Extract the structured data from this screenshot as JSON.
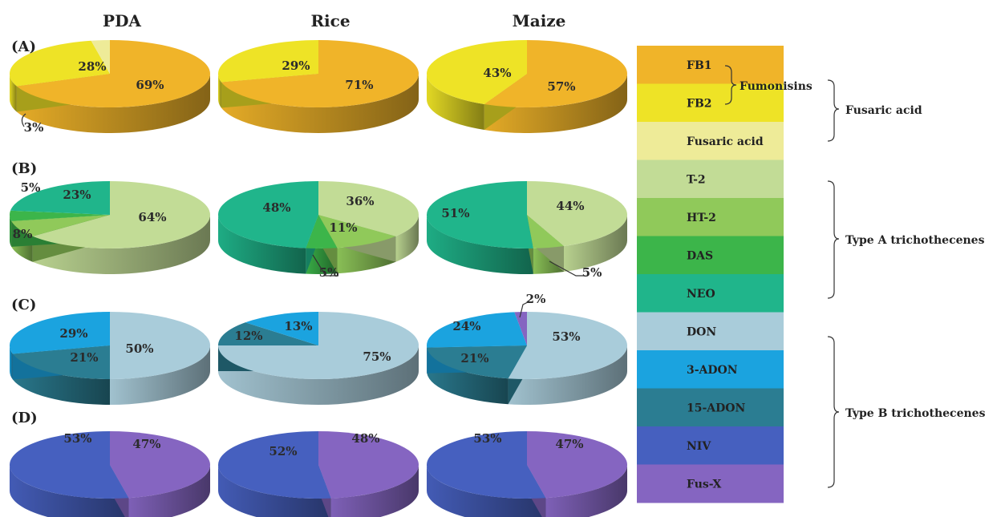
{
  "chart_data": {
    "type": "pie",
    "columns": [
      "PDA",
      "Rice",
      "Maize"
    ],
    "rows": [
      {
        "label": "(A)",
        "pies": [
          {
            "slices": [
              {
                "legend": "FB1",
                "value": 69,
                "label": "69%"
              },
              {
                "legend": "FB2",
                "value": 28,
                "label": "28%"
              },
              {
                "legend": "Fusaric acid",
                "value": 3,
                "label": "3%"
              }
            ]
          },
          {
            "slices": [
              {
                "legend": "FB1",
                "value": 71,
                "label": "71%"
              },
              {
                "legend": "FB2",
                "value": 29,
                "label": "29%"
              }
            ]
          },
          {
            "slices": [
              {
                "legend": "FB1",
                "value": 57,
                "label": "57%"
              },
              {
                "legend": "FB2",
                "value": 43,
                "label": "43%"
              }
            ]
          }
        ]
      },
      {
        "label": "(B)",
        "pies": [
          {
            "slices": [
              {
                "legend": "T-2",
                "value": 64,
                "label": "64%"
              },
              {
                "legend": "HT-2",
                "value": 8,
                "label": "8%"
              },
              {
                "legend": "DAS",
                "value": 5,
                "label": "5%"
              },
              {
                "legend": "NEO",
                "value": 23,
                "label": "23%"
              }
            ]
          },
          {
            "slices": [
              {
                "legend": "T-2",
                "value": 36,
                "label": "36%"
              },
              {
                "legend": "HT-2",
                "value": 11,
                "label": "11%"
              },
              {
                "legend": "DAS",
                "value": 5,
                "label": "5%"
              },
              {
                "legend": "NEO",
                "value": 48,
                "label": "48%"
              }
            ]
          },
          {
            "slices": [
              {
                "legend": "T-2",
                "value": 44,
                "label": "44%"
              },
              {
                "legend": "HT-2",
                "value": 5,
                "label": "5%"
              },
              {
                "legend": "NEO",
                "value": 51,
                "label": "51%"
              }
            ]
          }
        ]
      },
      {
        "label": "(C)",
        "pies": [
          {
            "slices": [
              {
                "legend": "DON",
                "value": 50,
                "label": "50%"
              },
              {
                "legend": "15-ADON",
                "value": 21,
                "label": "21%"
              },
              {
                "legend": "3-ADON",
                "value": 29,
                "label": "29%"
              }
            ]
          },
          {
            "slices": [
              {
                "legend": "DON",
                "value": 75,
                "label": "75%"
              },
              {
                "legend": "15-ADON",
                "value": 12,
                "label": "12%"
              },
              {
                "legend": "3-ADON",
                "value": 13,
                "label": "13%"
              }
            ]
          },
          {
            "slices": [
              {
                "legend": "DON",
                "value": 53,
                "label": "53%"
              },
              {
                "legend": "15-ADON",
                "value": 21,
                "label": "21%"
              },
              {
                "legend": "3-ADON",
                "value": 24,
                "label": "24%"
              },
              {
                "legend": "Fus-X",
                "value": 2,
                "label": "2%"
              }
            ]
          }
        ]
      },
      {
        "label": "(D)",
        "pies": [
          {
            "slices": [
              {
                "legend": "Fus-X",
                "value": 47,
                "label": "47%"
              },
              {
                "legend": "NIV",
                "value": 53,
                "label": "53%"
              }
            ]
          },
          {
            "slices": [
              {
                "legend": "Fus-X",
                "value": 48,
                "label": "48%"
              },
              {
                "legend": "NIV",
                "value": 52,
                "label": "52%"
              }
            ]
          },
          {
            "slices": [
              {
                "legend": "Fus-X",
                "value": 47,
                "label": "47%"
              },
              {
                "legend": "NIV",
                "value": 53,
                "label": "53%"
              }
            ]
          }
        ]
      }
    ],
    "legend": [
      {
        "name": "FB1",
        "color": "#f0b429"
      },
      {
        "name": "FB2",
        "color": "#eee326"
      },
      {
        "name": "Fusaric acid",
        "color": "#eeeb98"
      },
      {
        "name": "T-2",
        "color": "#c2dc96"
      },
      {
        "name": "HT-2",
        "color": "#90c95a"
      },
      {
        "name": "DAS",
        "color": "#3cb54a"
      },
      {
        "name": "NEO",
        "color": "#20b58b"
      },
      {
        "name": "DON",
        "color": "#a9ccda"
      },
      {
        "name": "3-ADON",
        "color": "#1ba3df"
      },
      {
        "name": "15-ADON",
        "color": "#2b7d92"
      },
      {
        "name": "NIV",
        "color": "#4660bf"
      },
      {
        "name": "Fus-X",
        "color": "#8565c1"
      }
    ],
    "groups": [
      {
        "label": "Fumonisins"
      },
      {
        "label": "Fusaric acid"
      },
      {
        "label": "Type A  trichothecenes"
      },
      {
        "label": "Type B trichothecenes"
      }
    ],
    "legend_placement": "right"
  }
}
